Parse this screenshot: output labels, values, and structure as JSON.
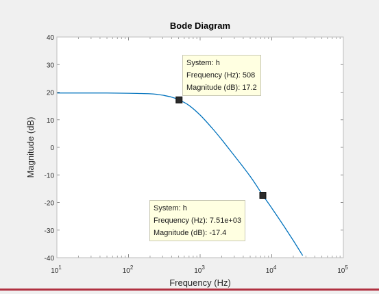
{
  "chart_data": {
    "type": "line",
    "title": "Bode Diagram",
    "xlabel": "Frequency  (Hz)",
    "ylabel": "Magnitude (dB)",
    "xscale": "log",
    "xlim": [
      10,
      100000
    ],
    "ylim": [
      -40,
      40
    ],
    "yticks": [
      40,
      30,
      20,
      10,
      0,
      -10,
      -20,
      -30,
      -40
    ],
    "yticklabels": [
      "40",
      "30",
      "20",
      "10",
      "0",
      "-10",
      "-20",
      "-30",
      "-40"
    ],
    "xticks": [
      {
        "value": 10,
        "base": "10",
        "exp": "1"
      },
      {
        "value": 100,
        "base": "10",
        "exp": "2"
      },
      {
        "value": 1000,
        "base": "10",
        "exp": "3"
      },
      {
        "value": 10000,
        "base": "10",
        "exp": "4"
      },
      {
        "value": 100000,
        "base": "10",
        "exp": "5"
      }
    ],
    "grid": false,
    "line_color": "#0072bd",
    "series": [
      {
        "name": "h",
        "x": [
          10,
          20,
          50,
          100,
          150,
          200,
          250,
          300,
          400,
          508,
          700,
          1000,
          1500,
          2000,
          3000,
          5000,
          7510,
          10000,
          15000,
          20000,
          27000
        ],
        "y": [
          19.7,
          19.7,
          19.7,
          19.6,
          19.5,
          19.4,
          19.2,
          18.9,
          18.2,
          17.2,
          15.2,
          11.7,
          6.7,
          2.8,
          -3.0,
          -10.5,
          -17.4,
          -22.0,
          -28.8,
          -33.8,
          -39.2
        ]
      }
    ],
    "datatips": [
      {
        "x": 508,
        "y": 17.2,
        "line1": "System: h",
        "line2": "Frequency (Hz): 508",
        "line3": "Magnitude (dB): 17.2"
      },
      {
        "x": 7510,
        "y": -17.4,
        "line1": "System: h",
        "line2": "Frequency (Hz): 7.51e+03",
        "line3": "Magnitude (dB): -17.4"
      }
    ]
  }
}
